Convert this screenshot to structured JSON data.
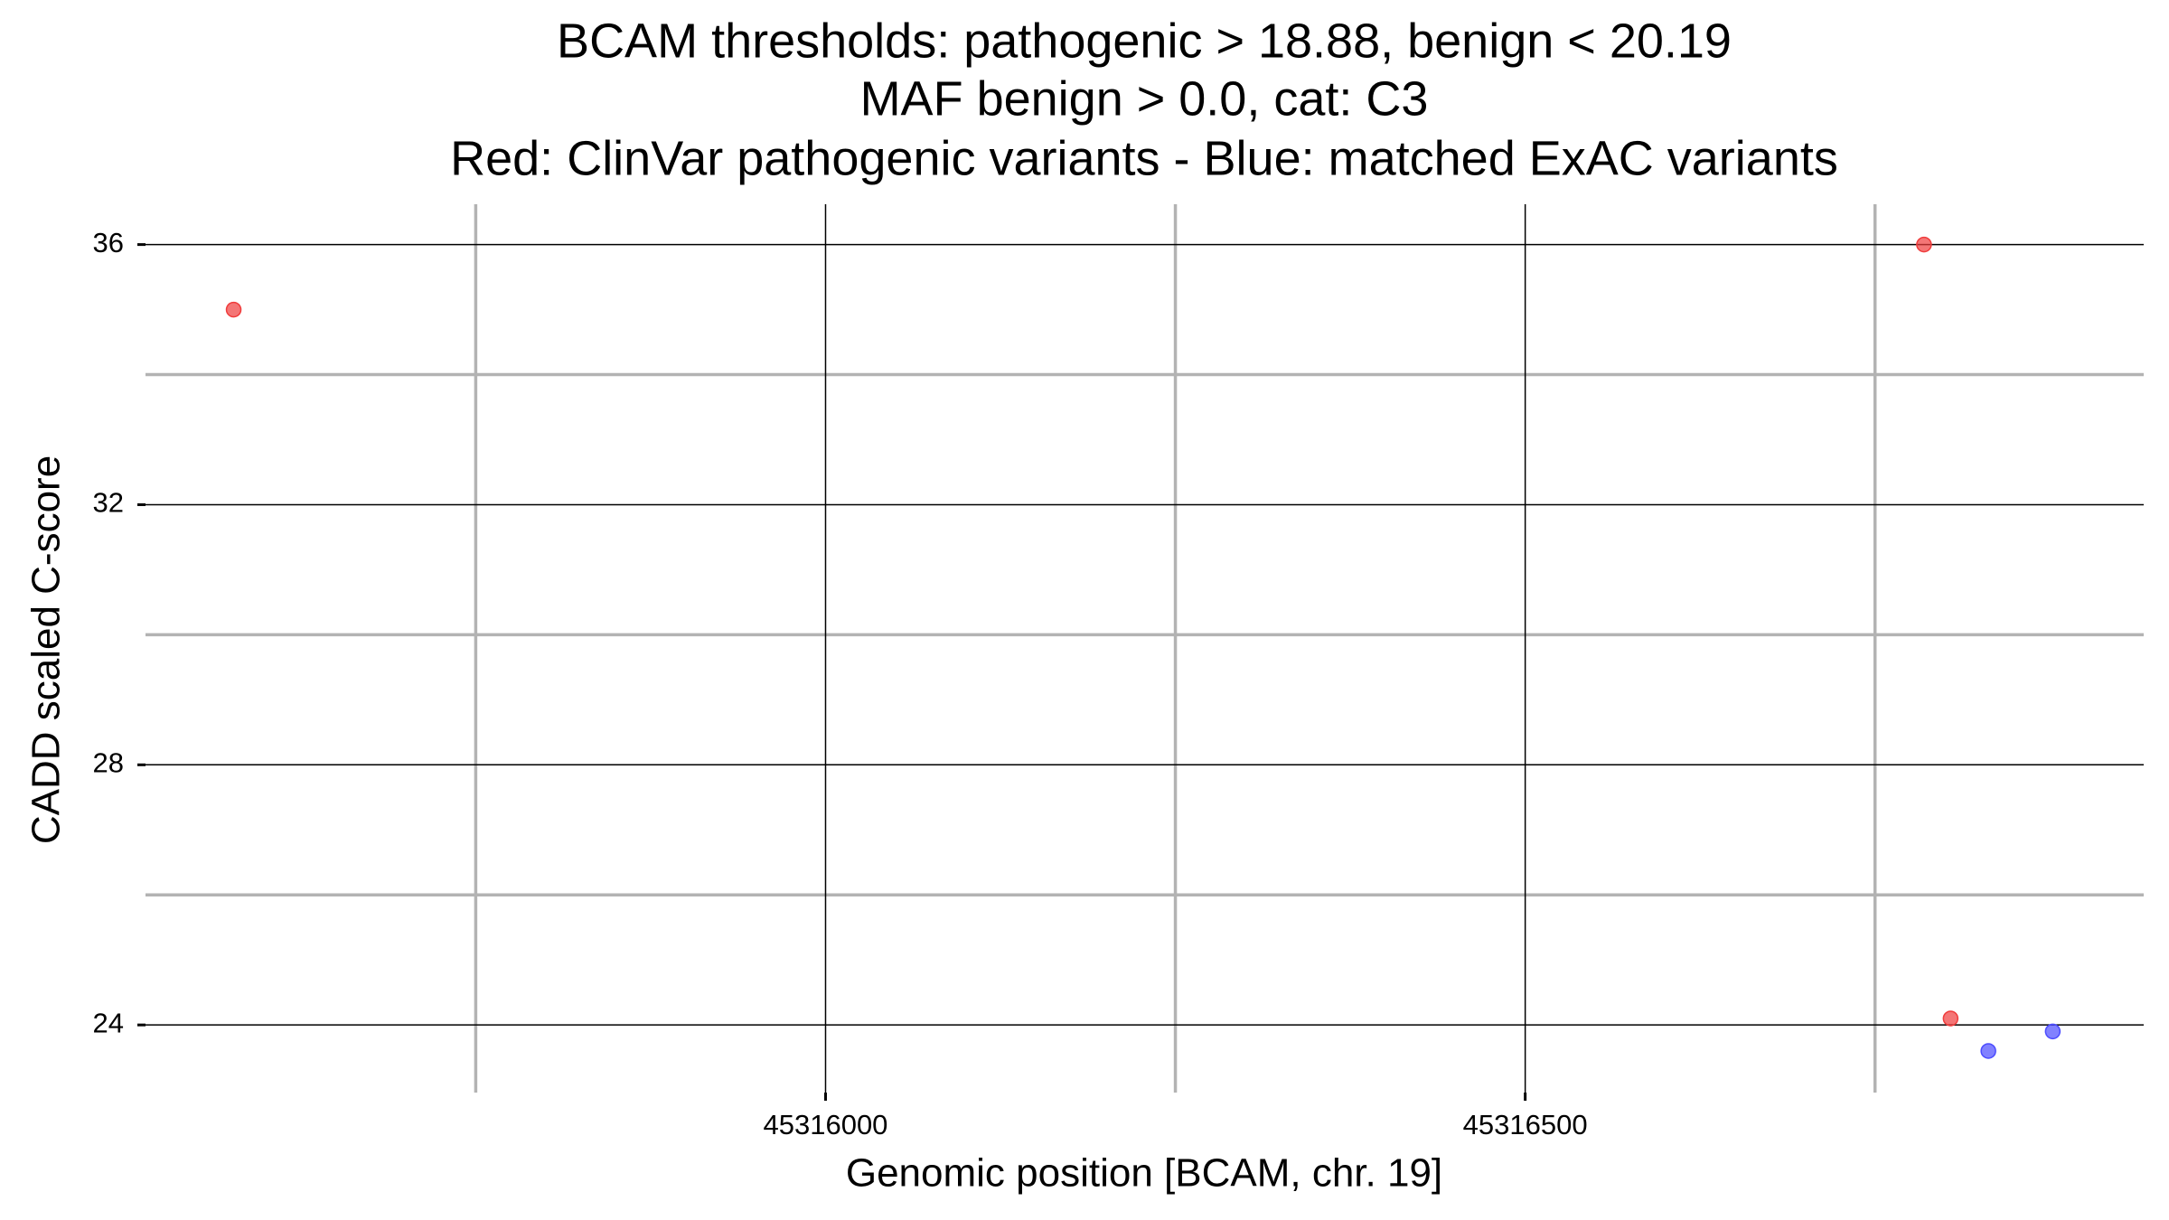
{
  "chart_data": {
    "type": "scatter",
    "title": [
      "BCAM thresholds: pathogenic > 18.88, benign < 20.19",
      "MAF benign > 0.0, cat: C3",
      "Red: ClinVar pathogenic variants - Blue: matched ExAC variants"
    ],
    "x_label": "Genomic position [BCAM, chr. 19]",
    "y_label": "CADD scaled C-score",
    "xlim": [
      45315514,
      45316942
    ],
    "xticks": [
      45316000,
      45316500
    ],
    "xminor": [
      45315750,
      45316250,
      45316750
    ],
    "ylim": [
      22.96,
      36.62
    ],
    "yticks": [
      24,
      28,
      32,
      36
    ],
    "yminor": [
      26,
      30,
      34
    ],
    "grid": true,
    "series": [
      {
        "color": "#f03c3c",
        "x": [
          45315577,
          45316785,
          45316804
        ],
        "values": [
          35.0,
          36.0,
          24.1
        ]
      },
      {
        "color": "#4b4bff",
        "x": [
          45316831,
          45316877
        ],
        "values": [
          23.6,
          23.9
        ]
      }
    ]
  }
}
